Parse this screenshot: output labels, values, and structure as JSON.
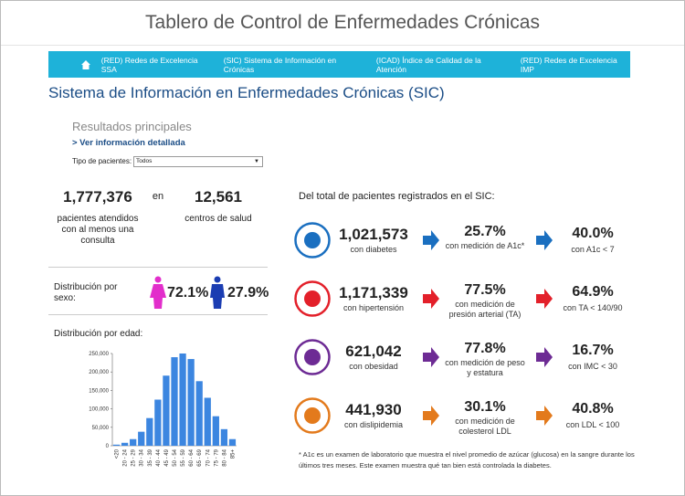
{
  "header": {
    "title": "Tablero de Control de Enfermedades Crónicas"
  },
  "nav": {
    "items": [
      "(RED) Redes de Excelencia SSA",
      "(SIC) Sistema de Información en Crónicas",
      "(ICAD) Índice de Calidad de la Atención",
      "(RED) Redes de Excelencia IMP"
    ]
  },
  "section_title": "Sistema de Información en Enfermedades Crónicas (SIC)",
  "summary": {
    "heading": "Resultados principales",
    "link": "> Ver información detallada",
    "filter_label": "Tipo de pacientes:",
    "filter_value": "Todos"
  },
  "stats": {
    "patients": "1,777,376",
    "patients_label": "pacientes atendidos con al menos una consulta",
    "connector": "en",
    "centers": "12,561",
    "centers_label": "centros de salud"
  },
  "sex": {
    "label": "Distribución por sexo:",
    "female": "72.1%",
    "male": "27.9%"
  },
  "age_label": "Distribución por edad:",
  "age_chart": {
    "type": "bar",
    "color": "#3c86e0",
    "categories": [
      "<20",
      "20 - 24",
      "25 - 29",
      "30 - 34",
      "35 - 39",
      "40 - 44",
      "45 - 49",
      "50 - 54",
      "55 - 59",
      "60 - 64",
      "65 - 69",
      "70 - 74",
      "75 - 79",
      "80 - 84",
      "85+"
    ],
    "values": [
      3000,
      8000,
      18000,
      38000,
      75000,
      125000,
      190000,
      240000,
      250000,
      235000,
      175000,
      130000,
      80000,
      45000,
      18000
    ],
    "ylim": [
      0,
      250000
    ],
    "yticks": [
      0,
      {
        "value": 50000,
        "label": "50,000"
      },
      {
        "value": 100000,
        "label": "100,000"
      },
      {
        "value": 150000,
        "label": "150,000"
      },
      {
        "value": 200000,
        "label": "200,000"
      },
      {
        "value": 250000,
        "label": "250,000"
      }
    ]
  },
  "registered": {
    "heading": "Del total de pacientes registrados en el SIC:",
    "rows": [
      {
        "count": "1,021,573",
        "count_label": "con diabetes",
        "pct1": "25.7%",
        "pct1_label": "con medición de A1c*",
        "pct2": "40.0%",
        "pct2_label": "con A1c < 7"
      },
      {
        "count": "1,171,339",
        "count_label": "con hipertensión",
        "pct1": "77.5%",
        "pct1_label": "con medición de presión arterial (TA)",
        "pct2": "64.9%",
        "pct2_label": "con TA < 140/90"
      },
      {
        "count": "621,042",
        "count_label": "con obesidad",
        "pct1": "77.8%",
        "pct1_label": "con medición de peso y estatura",
        "pct2": "16.7%",
        "pct2_label": "con IMC < 30"
      },
      {
        "count": "441,930",
        "count_label": "con dislipidemia",
        "pct1": "30.1%",
        "pct1_label": "con medición de colesterol LDL",
        "pct2": "40.8%",
        "pct2_label": "con LDL < 100"
      }
    ],
    "footnote": "* A1c es un examen de laboratorio que muestra el nivel promedio de azúcar (glucosa) en la sangre durante los últimos tres meses. Este examen muestra qué tan bien está controlada la diabetes."
  }
}
